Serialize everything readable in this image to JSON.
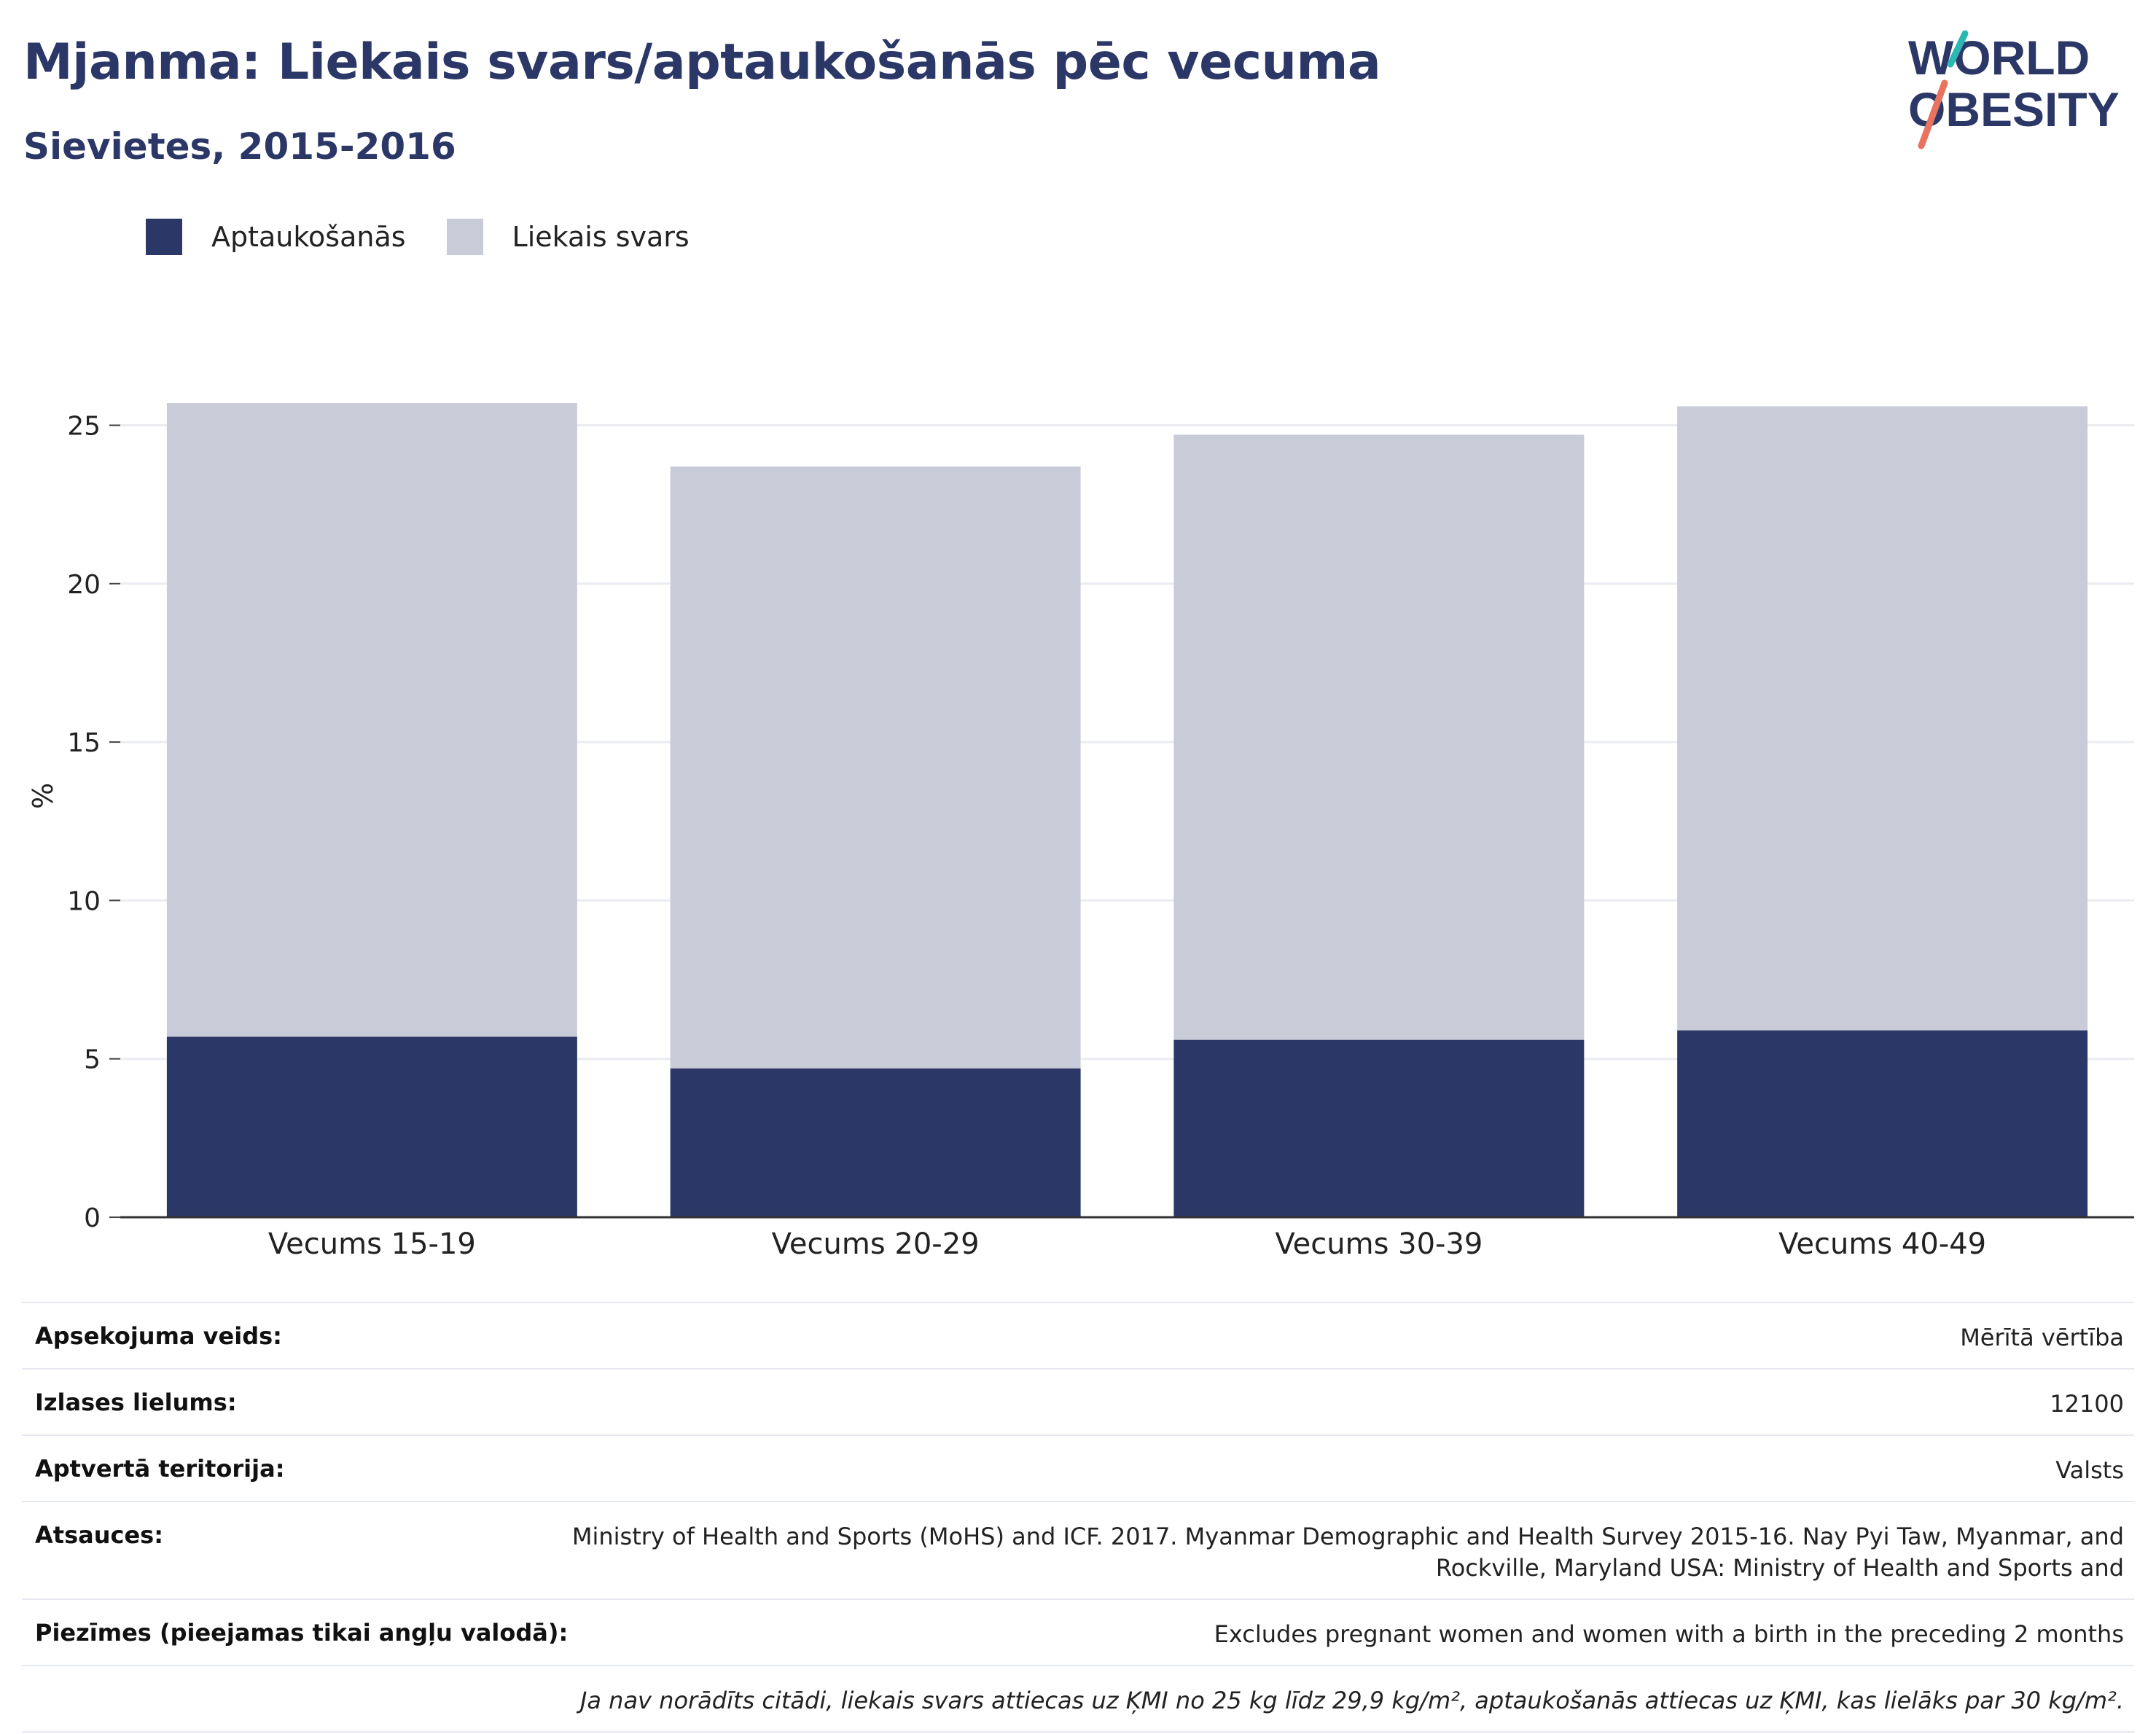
{
  "header": {
    "title": "Mjanma: Liekais svars/aptaukošanās pēc vecuma",
    "subtitle": "Sievietes, 2015-2016"
  },
  "logo": {
    "line1": "WORLD",
    "line2": "OBESITY"
  },
  "colors": {
    "obesity": "#2b3766",
    "overweight": "#c9ccd8",
    "title": "#2b3766",
    "logo_teal": "#2bb8b2",
    "logo_coral": "#e8735f",
    "grid": "#eaecf1"
  },
  "chart_data": {
    "type": "bar",
    "stacked": true,
    "categories": [
      "Vecums 15-19",
      "Vecums 20-29",
      "Vecums 30-39",
      "Vecums 40-49"
    ],
    "series": [
      {
        "name": "Aptaukošanās",
        "values": [
          5.7,
          4.7,
          5.6,
          5.9
        ]
      },
      {
        "name": "Liekais svars",
        "values": [
          20.0,
          19.0,
          19.1,
          19.7
        ]
      }
    ],
    "ylabel": "%",
    "ylim": [
      0,
      26
    ],
    "yticks": [
      0,
      5,
      10,
      15,
      20,
      25
    ],
    "grid": true,
    "legend_position": "top-left"
  },
  "info": [
    {
      "label": "Apsekojuma veids:",
      "value": "Mērītā vērtība"
    },
    {
      "label": "Izlases lielums:",
      "value": "12100"
    },
    {
      "label": "Aptvertā teritorija:",
      "value": "Valsts"
    },
    {
      "label": "Atsauces:",
      "value": "Ministry of Health and Sports (MoHS) and ICF. 2017. Myanmar Demographic and Health Survey 2015-16. Nay Pyi Taw, Myanmar, and Rockville, Maryland USA: Ministry of Health and Sports and"
    },
    {
      "label": "Piezīmes (pieejamas tikai angļu valodā):",
      "value": "Excludes pregnant women and women with a birth in the preceding 2 months"
    }
  ],
  "footnote": "Ja nav norādīts citādi, liekais svars attiecas uz ĶMI no 25 kg līdz 29,9 kg/m², aptaukošanās attiecas uz ĶMI, kas lielāks par 30 kg/m²."
}
